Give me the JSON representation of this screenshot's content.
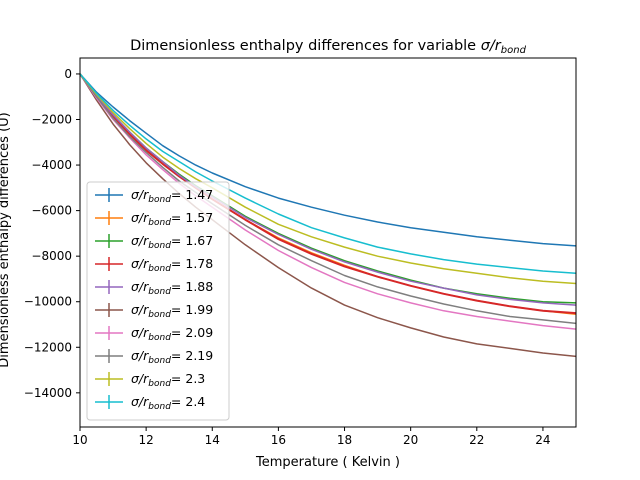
{
  "chart_data": {
    "type": "line",
    "title": "Dimensionless enthalpy differences for variable σ/r_bond",
    "title_parts": {
      "prefix": "Dimensionless enthalpy differences for variable ",
      "sigma": "σ/r",
      "sub": "bond"
    },
    "xlabel": "Temperature ( Kelvin )",
    "ylabel": "Dimensionless enthalpy differences (U)",
    "xlim": [
      10,
      25
    ],
    "ylim": [
      -15500,
      700
    ],
    "xticks": [
      10,
      12,
      14,
      16,
      18,
      20,
      22,
      24
    ],
    "yticks": [
      0,
      -2000,
      -4000,
      -6000,
      -8000,
      -10000,
      -12000,
      -14000
    ],
    "grid": false,
    "legend_position": "lower-left",
    "x": [
      10,
      10.5,
      11,
      11.5,
      12,
      12.5,
      13,
      13.5,
      14,
      15,
      16,
      17,
      18,
      19,
      20,
      21,
      22,
      23,
      24,
      25
    ],
    "series": [
      {
        "name": "1.47",
        "label_prefix": "σ/r",
        "label_sub": "bond",
        "label_suffix": "= 1.47",
        "color": "#1f77b4",
        "values": [
          0,
          -800,
          -1450,
          -2050,
          -2600,
          -3150,
          -3600,
          -4000,
          -4350,
          -4950,
          -5450,
          -5850,
          -6200,
          -6500,
          -6750,
          -6950,
          -7150,
          -7300,
          -7450,
          -7550
        ]
      },
      {
        "name": "1.57",
        "label_prefix": "σ/r",
        "label_sub": "bond",
        "label_suffix": "= 1.57",
        "color": "#ff7f0e",
        "values": [
          0,
          -1000,
          -1850,
          -2600,
          -3300,
          -3950,
          -4500,
          -5000,
          -5500,
          -6400,
          -7200,
          -7850,
          -8400,
          -8900,
          -9300,
          -9650,
          -9950,
          -10200,
          -10400,
          -10550
        ]
      },
      {
        "name": "1.67",
        "label_prefix": "σ/r",
        "label_sub": "bond",
        "label_suffix": "= 1.67",
        "color": "#2ca02c",
        "values": [
          0,
          -950,
          -1800,
          -2550,
          -3250,
          -3850,
          -4400,
          -4900,
          -5350,
          -6250,
          -7000,
          -7650,
          -8200,
          -8650,
          -9050,
          -9400,
          -9650,
          -9850,
          -10000,
          -10050
        ]
      },
      {
        "name": "1.78",
        "label_prefix": "σ/r",
        "label_sub": "bond",
        "label_suffix": "= 1.78",
        "color": "#d62728",
        "values": [
          0,
          -1000,
          -1850,
          -2650,
          -3350,
          -3950,
          -4500,
          -5000,
          -5500,
          -6400,
          -7250,
          -7900,
          -8450,
          -8900,
          -9300,
          -9650,
          -9950,
          -10200,
          -10400,
          -10500
        ]
      },
      {
        "name": "1.88",
        "label_prefix": "σ/r",
        "label_sub": "bond",
        "label_suffix": "= 1.88",
        "color": "#9467bd",
        "values": [
          0,
          -950,
          -1800,
          -2550,
          -3250,
          -3850,
          -4450,
          -4950,
          -5400,
          -6300,
          -7050,
          -7700,
          -8250,
          -8700,
          -9100,
          -9400,
          -9700,
          -9900,
          -10050,
          -10150
        ]
      },
      {
        "name": "1.99",
        "label_prefix": "σ/r",
        "label_sub": "bond",
        "label_suffix": "= 1.99",
        "color": "#8c564b",
        "values": [
          0,
          -1150,
          -2200,
          -3100,
          -3900,
          -4600,
          -5250,
          -5850,
          -6400,
          -7500,
          -8500,
          -9400,
          -10150,
          -10700,
          -11150,
          -11550,
          -11850,
          -12050,
          -12250,
          -12400
        ]
      },
      {
        "name": "2.09",
        "label_prefix": "σ/r",
        "label_sub": "bond",
        "label_suffix": "= 2.09",
        "color": "#e377c2",
        "values": [
          0,
          -1050,
          -2000,
          -2800,
          -3550,
          -4200,
          -4800,
          -5350,
          -5850,
          -6850,
          -7750,
          -8500,
          -9150,
          -9650,
          -10050,
          -10400,
          -10650,
          -10850,
          -11050,
          -11200
        ]
      },
      {
        "name": "2.19",
        "label_prefix": "σ/r",
        "label_sub": "bond",
        "label_suffix": "= 2.19",
        "color": "#7f7f7f",
        "values": [
          0,
          -1000,
          -1950,
          -2750,
          -3450,
          -4100,
          -4700,
          -5200,
          -5700,
          -6650,
          -7500,
          -8200,
          -8850,
          -9350,
          -9750,
          -10100,
          -10400,
          -10650,
          -10800,
          -10950
        ]
      },
      {
        "name": "2.3",
        "label_prefix": "σ/r",
        "label_sub": "bond",
        "label_suffix": "= 2.3",
        "color": "#bcbd22",
        "values": [
          0,
          -900,
          -1700,
          -2400,
          -3050,
          -3650,
          -4150,
          -4600,
          -5000,
          -5850,
          -6600,
          -7150,
          -7600,
          -8000,
          -8300,
          -8550,
          -8750,
          -8950,
          -9100,
          -9200
        ]
      },
      {
        "name": "2.4",
        "label_prefix": "σ/r",
        "label_sub": "bond",
        "label_suffix": "= 2.4",
        "color": "#17becf",
        "values": [
          0,
          -850,
          -1600,
          -2250,
          -2850,
          -3400,
          -3850,
          -4300,
          -4700,
          -5450,
          -6150,
          -6750,
          -7200,
          -7600,
          -7900,
          -8150,
          -8350,
          -8500,
          -8650,
          -8750
        ]
      }
    ]
  }
}
